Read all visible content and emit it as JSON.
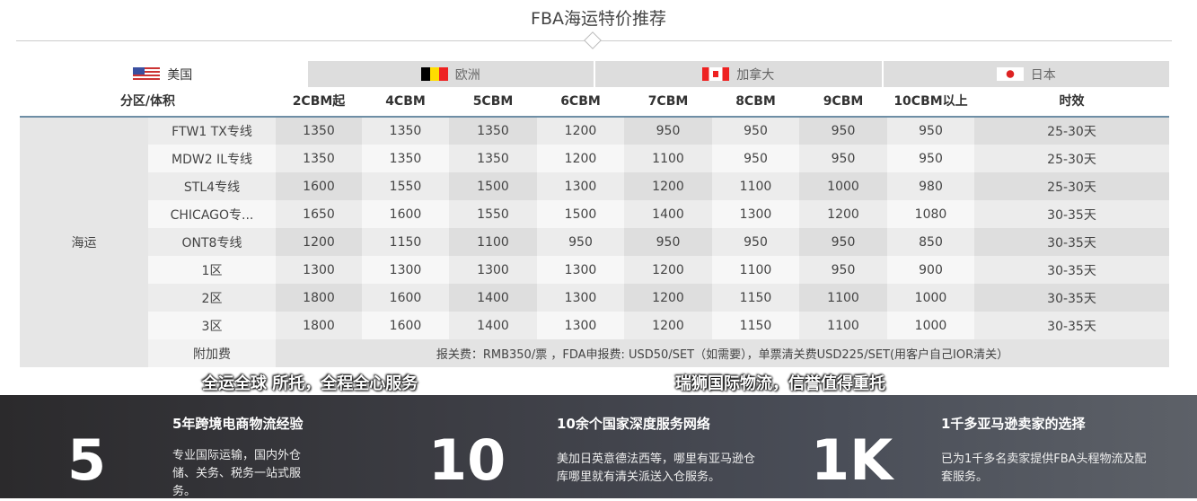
{
  "title": "FBA海运特价推荐",
  "tabs": [
    {
      "label": "美国",
      "flag": "us-flag"
    },
    {
      "label": "欧洲",
      "flag": "belgium-flag"
    },
    {
      "label": "加拿大",
      "flag": "canada-flag"
    },
    {
      "label": "日本",
      "flag": "japan-flag"
    }
  ],
  "active_tab": "美国",
  "table": {
    "headers": [
      "分区/体积",
      "2CBM起",
      "4CBM",
      "5CBM",
      "6CBM",
      "7CBM",
      "8CBM",
      "9CBM",
      "10CBM以上",
      "时效"
    ],
    "region": "海运",
    "rows": [
      {
        "route": "FTW1 TX专线",
        "values": [
          "1350",
          "1350",
          "1350",
          "1200",
          "950",
          "950",
          "950",
          "950"
        ],
        "time": "25-30天"
      },
      {
        "route": "MDW2 IL专线",
        "values": [
          "1350",
          "1350",
          "1350",
          "1200",
          "1100",
          "950",
          "950",
          "950"
        ],
        "time": "25-30天"
      },
      {
        "route": "STL4专线",
        "values": [
          "1600",
          "1550",
          "1500",
          "1300",
          "1200",
          "1100",
          "1000",
          "980"
        ],
        "time": "25-30天"
      },
      {
        "route": "CHICAGO专...",
        "values": [
          "1650",
          "1600",
          "1550",
          "1500",
          "1400",
          "1300",
          "1200",
          "1080"
        ],
        "time": "30-35天"
      },
      {
        "route": "ONT8专线",
        "values": [
          "1200",
          "1150",
          "1100",
          "950",
          "950",
          "950",
          "950",
          "850"
        ],
        "time": "30-35天"
      },
      {
        "route": "1区",
        "values": [
          "1300",
          "1300",
          "1300",
          "1300",
          "1200",
          "1100",
          "950",
          "900"
        ],
        "time": "30-35天"
      },
      {
        "route": "2区",
        "values": [
          "1800",
          "1600",
          "1400",
          "1300",
          "1200",
          "1150",
          "1100",
          "1000"
        ],
        "time": "30-35天"
      },
      {
        "route": "3区",
        "values": [
          "1800",
          "1600",
          "1400",
          "1300",
          "1200",
          "1150",
          "1100",
          "1000"
        ],
        "time": "30-35天"
      }
    ],
    "surcharge_label": "附加费",
    "surcharge_text": "报关费：RMB350/票 ，FDA申报费: USD50/SET（如需要），单票清关费USD225/SET(用客户自己IOR清关）"
  },
  "slogans": [
    "全运全球 所托，全程全心服务",
    "瑞狮国际物流，信誉值得重托"
  ],
  "stats": [
    {
      "number": "5",
      "heading": "5年跨境电商物流经验",
      "desc": "专业国际运输，国内外仓储、关务、税务一站式服务。"
    },
    {
      "number": "10",
      "heading": "10余个国家深度服务网络",
      "desc": "美加日英意德法西等，哪里有亚马逊仓库哪里就有清关派送入仓服务。"
    },
    {
      "number": "1K",
      "heading": "1千多亚马逊卖家的选择",
      "desc": "已为1千多名卖家提供FBA头程物流及配套服务。"
    }
  ]
}
